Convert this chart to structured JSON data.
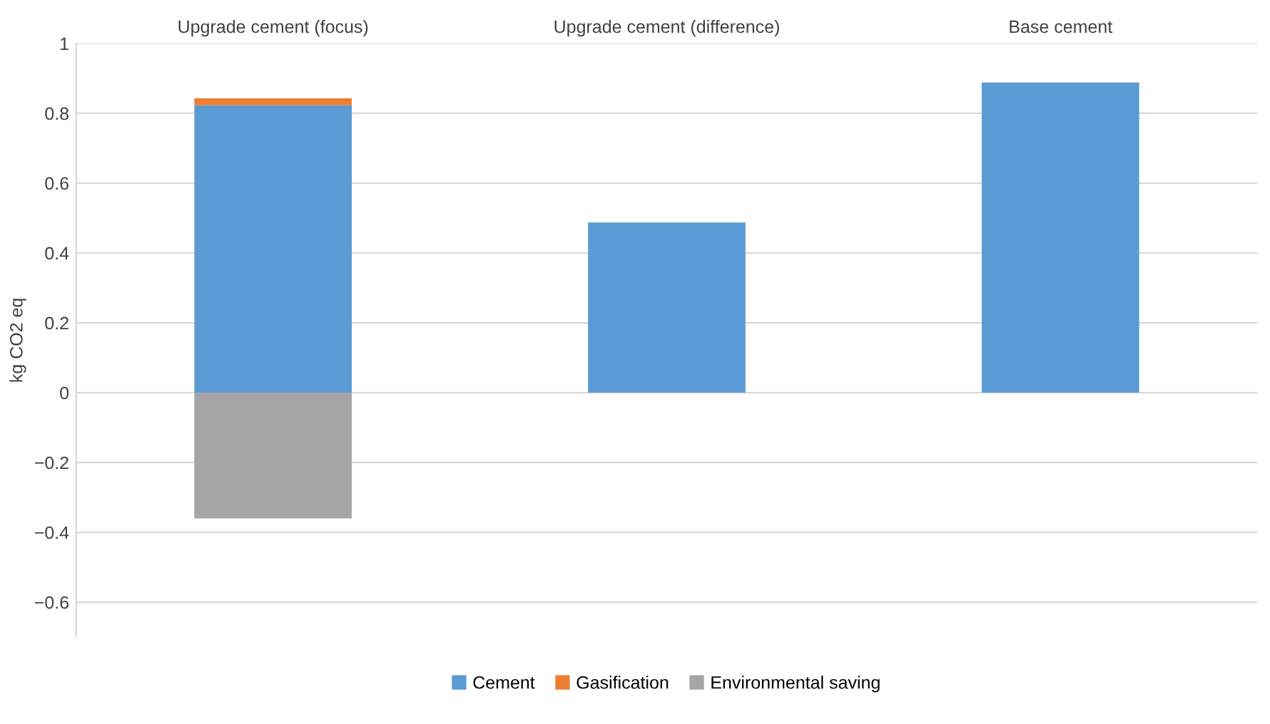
{
  "chart_data": {
    "type": "bar",
    "stacked": true,
    "ylabel": "kg CO2 eq",
    "categories": [
      "Upgrade cement (focus)",
      "Upgrade cement (difference)",
      "Base cement"
    ],
    "series": [
      {
        "name": "Cement",
        "color": "#5b9bd5",
        "values": [
          0.823,
          0.487,
          0.888
        ]
      },
      {
        "name": "Gasification",
        "color": "#ed7d31",
        "values": [
          0.02,
          null,
          null
        ]
      },
      {
        "name": "Environmental saving",
        "color": "#a5a5a5",
        "values": [
          -0.36,
          null,
          null
        ]
      }
    ],
    "ylim": [
      -0.7,
      1
    ],
    "yticks": [
      {
        "value": -0.6,
        "label": "−0.6"
      },
      {
        "value": -0.4,
        "label": "−0.4"
      },
      {
        "value": -0.2,
        "label": "−0.2"
      },
      0,
      0.2,
      0.4,
      0.6,
      0.8,
      1
    ],
    "grid": "y",
    "legend": "bottom"
  }
}
